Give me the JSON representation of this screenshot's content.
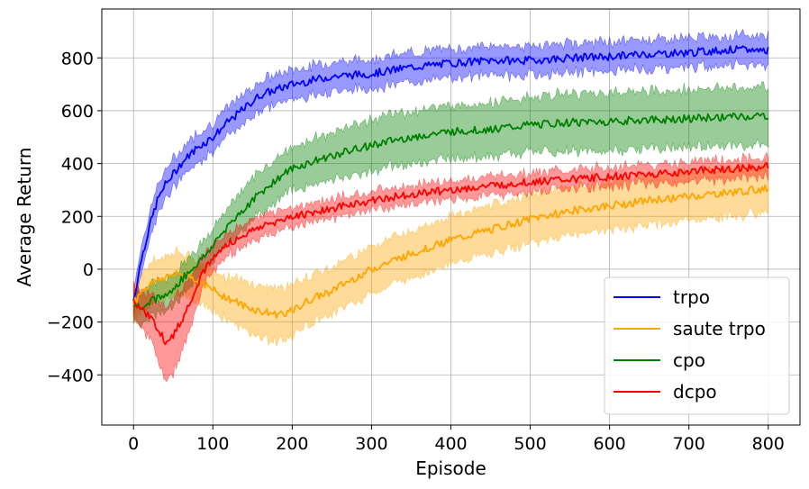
{
  "chart_data": {
    "type": "line",
    "xlabel": "Episode",
    "ylabel": "Average Return",
    "xlim": [
      -40,
      840
    ],
    "ylim": [
      -590,
      985
    ],
    "xticks": [
      0,
      100,
      200,
      300,
      400,
      500,
      600,
      700,
      800
    ],
    "yticks": [
      -400,
      -200,
      0,
      200,
      400,
      600,
      800
    ],
    "xtick_labels": [
      "0",
      "100",
      "200",
      "300",
      "400",
      "500",
      "600",
      "700",
      "800"
    ],
    "ytick_labels": [
      "−400",
      "−200",
      "0",
      "200",
      "400",
      "600",
      "800"
    ],
    "grid": true,
    "legend_position": "lower-right",
    "band_opacity": 0.4,
    "series": [
      {
        "name": "trpo",
        "color": "#0000ff",
        "x": [
          0,
          10,
          20,
          30,
          40,
          50,
          60,
          70,
          80,
          90,
          100,
          120,
          140,
          160,
          180,
          200,
          250,
          300,
          350,
          400,
          450,
          500,
          550,
          600,
          650,
          700,
          750,
          800
        ],
        "y": [
          -120,
          40,
          160,
          260,
          320,
          360,
          400,
          430,
          460,
          480,
          500,
          560,
          610,
          660,
          680,
          700,
          730,
          740,
          765,
          780,
          790,
          790,
          800,
          805,
          815,
          820,
          830,
          830
        ],
        "band": [
          50,
          50,
          50,
          55,
          55,
          55,
          55,
          55,
          55,
          55,
          55,
          55,
          55,
          55,
          55,
          55,
          55,
          55,
          55,
          55,
          55,
          55,
          55,
          55,
          55,
          55,
          55,
          55
        ]
      },
      {
        "name": "saute trpo",
        "color": "#ffa500",
        "x": [
          0,
          10,
          20,
          30,
          40,
          50,
          60,
          70,
          80,
          90,
          100,
          120,
          140,
          160,
          180,
          200,
          220,
          250,
          300,
          350,
          400,
          450,
          500,
          550,
          600,
          650,
          700,
          750,
          800
        ],
        "y": [
          -130,
          -80,
          -60,
          -40,
          -30,
          -20,
          -20,
          -25,
          -40,
          -60,
          -80,
          -110,
          -140,
          -160,
          -170,
          -160,
          -120,
          -80,
          0,
          60,
          110,
          150,
          190,
          220,
          240,
          260,
          275,
          290,
          305
        ],
        "band": [
          60,
          70,
          80,
          80,
          80,
          80,
          80,
          80,
          80,
          80,
          80,
          80,
          90,
          100,
          100,
          100,
          90,
          90,
          90,
          90,
          90,
          90,
          90,
          90,
          90,
          90,
          90,
          90,
          90
        ]
      },
      {
        "name": "cpo",
        "color": "#008000",
        "x": [
          0,
          10,
          20,
          30,
          40,
          50,
          60,
          70,
          80,
          90,
          100,
          120,
          140,
          160,
          180,
          200,
          250,
          300,
          350,
          400,
          450,
          500,
          550,
          600,
          650,
          700,
          750,
          800
        ],
        "y": [
          -130,
          -140,
          -120,
          -110,
          -100,
          -80,
          -40,
          -10,
          20,
          50,
          90,
          170,
          230,
          290,
          340,
          380,
          430,
          470,
          500,
          520,
          530,
          545,
          555,
          560,
          565,
          570,
          575,
          580
        ],
        "band": [
          60,
          60,
          60,
          60,
          60,
          60,
          60,
          60,
          60,
          60,
          60,
          70,
          80,
          80,
          80,
          80,
          90,
          95,
          100,
          100,
          100,
          105,
          110,
          110,
          110,
          110,
          110,
          110
        ]
      },
      {
        "name": "dcpo",
        "color": "#ff0000",
        "x": [
          0,
          10,
          20,
          30,
          40,
          50,
          60,
          70,
          80,
          90,
          100,
          120,
          140,
          160,
          180,
          200,
          250,
          300,
          350,
          400,
          450,
          500,
          550,
          600,
          650,
          700,
          750,
          800
        ],
        "y": [
          -120,
          -150,
          -180,
          -220,
          -270,
          -250,
          -200,
          -130,
          -60,
          0,
          40,
          100,
          130,
          160,
          180,
          200,
          230,
          260,
          285,
          300,
          315,
          330,
          340,
          350,
          360,
          370,
          380,
          390
        ],
        "band": [
          60,
          70,
          80,
          110,
          140,
          140,
          120,
          100,
          80,
          60,
          50,
          40,
          40,
          40,
          35,
          35,
          35,
          35,
          35,
          35,
          35,
          35,
          35,
          35,
          35,
          35,
          35,
          35
        ]
      }
    ]
  }
}
